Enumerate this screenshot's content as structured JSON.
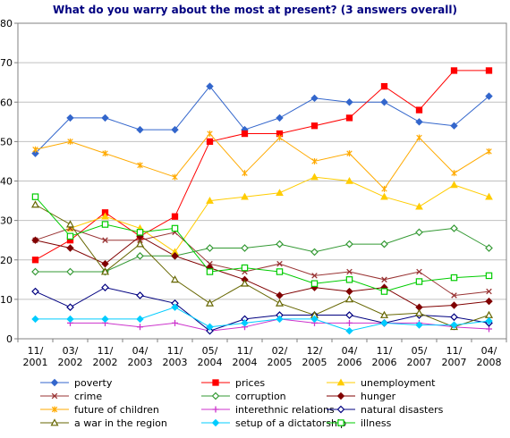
{
  "chart_data": {
    "type": "line",
    "title": "What do you warry about the most at present? (3 answers overall)",
    "xlabel": "",
    "ylabel": "",
    "ylim": [
      0,
      80
    ],
    "yticks": [
      0,
      10,
      20,
      30,
      40,
      50,
      60,
      70,
      80
    ],
    "grid": true,
    "legend_position": "bottom",
    "categories": [
      [
        "11/",
        "2001"
      ],
      [
        "03/",
        "2002"
      ],
      [
        "11/",
        "2002"
      ],
      [
        "04/",
        "2003"
      ],
      [
        "11/",
        "2003"
      ],
      [
        "05/",
        "2004"
      ],
      [
        "11/",
        "2004"
      ],
      [
        "02/",
        "2005"
      ],
      [
        "12/",
        "2005"
      ],
      [
        "04/",
        "2006"
      ],
      [
        "11/",
        "2006"
      ],
      [
        "05/",
        "2007"
      ],
      [
        "11/",
        "2007"
      ],
      [
        "04/",
        "2008"
      ]
    ],
    "series": [
      {
        "name": "poverty",
        "color": "#3366cc",
        "marker": "diamond",
        "values": [
          47,
          56,
          56,
          53,
          53,
          64,
          53,
          56,
          61,
          60,
          60,
          55,
          54,
          61.5
        ]
      },
      {
        "name": "prices",
        "color": "#ff0000",
        "marker": "square",
        "values": [
          20,
          25,
          32,
          26,
          31,
          50,
          52,
          52,
          54,
          56,
          64,
          58,
          68,
          68
        ]
      },
      {
        "name": "unemployment",
        "color": "#ffcc00",
        "marker": "triangle",
        "values": [
          null,
          28,
          31,
          28,
          22,
          35,
          36,
          37,
          41,
          40,
          36,
          33.5,
          39,
          36
        ]
      },
      {
        "name": "crime",
        "color": "#993333",
        "marker": "x",
        "values": [
          25,
          28,
          25,
          25,
          27,
          19,
          17,
          19,
          16,
          17,
          15,
          17,
          11,
          12
        ]
      },
      {
        "name": "corruption",
        "color": "#339933",
        "marker": "diamond-open",
        "values": [
          17,
          17,
          17,
          21,
          21,
          23,
          23,
          24,
          22,
          24,
          24,
          27,
          28,
          23
        ]
      },
      {
        "name": "hunger",
        "color": "#800000",
        "marker": "diamond",
        "values": [
          25,
          23,
          19,
          26,
          21,
          18,
          15,
          11,
          13,
          12,
          13,
          8,
          8.5,
          9.5
        ]
      },
      {
        "name": "future of children",
        "color": "#ffaa00",
        "marker": "star",
        "values": [
          48,
          50,
          47,
          44,
          41,
          52,
          42,
          51,
          45,
          47,
          38,
          51,
          42,
          47.5
        ]
      },
      {
        "name": "interethnic relations",
        "color": "#cc33cc",
        "marker": "plus",
        "values": [
          null,
          4,
          4,
          3,
          4,
          2,
          3,
          5,
          4,
          4,
          4,
          4,
          3,
          2.5
        ]
      },
      {
        "name": "natural disasters",
        "color": "#000080",
        "marker": "diamond-open",
        "values": [
          12,
          8,
          13,
          11,
          9,
          2,
          5,
          6,
          6,
          6,
          4,
          6,
          5.5,
          4
        ]
      },
      {
        "name": "a war in the region",
        "color": "#666600",
        "marker": "triangle-open",
        "values": [
          34,
          29,
          17,
          24,
          15,
          9,
          14,
          9,
          6,
          10,
          6,
          6.5,
          3,
          6
        ]
      },
      {
        "name": "setup of a dictatorship",
        "color": "#00ccff",
        "marker": "diamond",
        "values": [
          5,
          5,
          5,
          5,
          8,
          3,
          4,
          5,
          5,
          2,
          4,
          3.5,
          3.5,
          4.5
        ]
      },
      {
        "name": "illness",
        "color": "#00cc00",
        "marker": "square-open",
        "values": [
          36,
          26,
          29,
          27,
          28,
          17,
          18,
          17,
          14,
          15,
          12,
          14.5,
          15.5,
          16
        ]
      }
    ]
  }
}
